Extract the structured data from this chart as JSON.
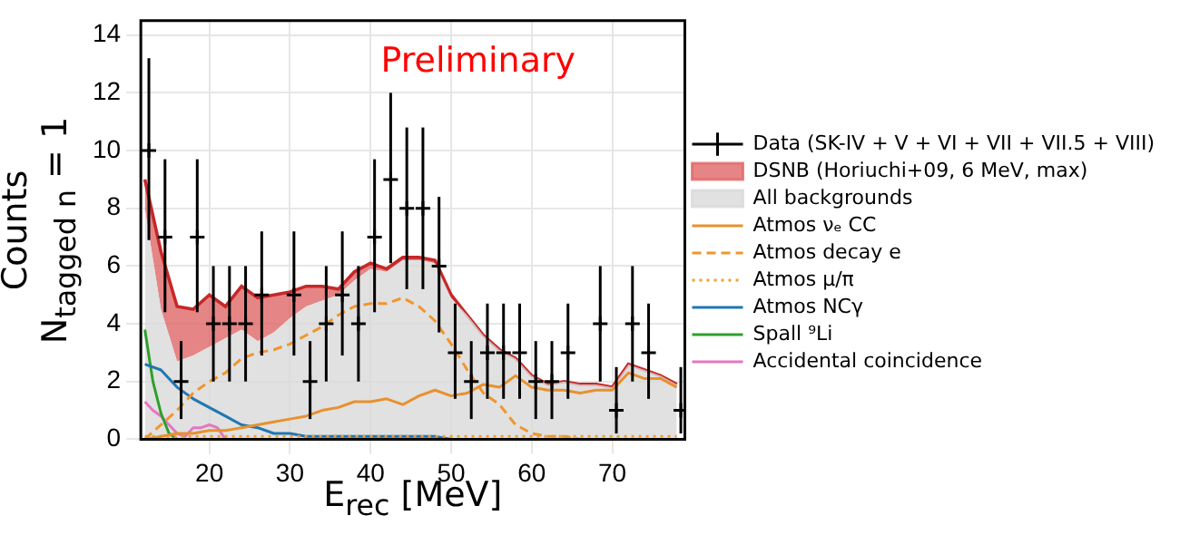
{
  "chart_data": {
    "type": "line",
    "xlabel": "E$_{rec}$ [MeV]",
    "ylabel": "Counts\nN$_{tagged n}$ = 1",
    "annotations": [
      "Preliminary"
    ],
    "xlim": [
      11.5,
      79
    ],
    "xticks": [
      20,
      30,
      40,
      50,
      60,
      70
    ],
    "ylim": [
      0,
      14.5
    ],
    "yticks": [
      0,
      2,
      4,
      6,
      8,
      10,
      12,
      14
    ],
    "grid": true,
    "legend": "right",
    "stacked": true,
    "x": [
      12,
      14,
      16,
      18,
      20,
      22,
      24,
      26,
      28,
      30,
      32,
      34,
      36,
      38,
      40,
      42,
      44,
      46,
      48,
      50,
      52,
      54,
      56,
      58,
      60,
      62,
      64,
      66,
      68,
      70,
      72,
      74,
      76,
      78
    ],
    "series": [
      {
        "name": "Data (SK-IV + V + VI + VII + VII.5 + VIII)",
        "type": "scatter",
        "marker": "cross",
        "color": "#000000",
        "x": [
          12.5,
          14.5,
          16.5,
          18.5,
          20.5,
          22.5,
          24.5,
          26.5,
          28.5,
          30.5,
          32.5,
          34.5,
          36.5,
          38.5,
          40.5,
          42.5,
          44.5,
          46.5,
          48.5,
          50.5,
          52.5,
          54.5,
          56.5,
          58.5,
          60.5,
          62.5,
          64.5,
          66.5,
          68.5,
          70.5,
          72.5,
          74.5,
          76.5,
          78.5
        ],
        "values": [
          10,
          7,
          2,
          7,
          4,
          4,
          4,
          5,
          null,
          5,
          2,
          4,
          5,
          4,
          7,
          9,
          8,
          8,
          6,
          3,
          2,
          3,
          3,
          3,
          2,
          2,
          3,
          null,
          4,
          1,
          4,
          3,
          null,
          1
        ],
        "errors": [
          [
            6.9,
            13.2
          ],
          [
            4.4,
            9.7
          ],
          [
            0.7,
            3.4
          ],
          [
            4.4,
            9.7
          ],
          [
            2.0,
            6.0
          ],
          [
            2.0,
            6.0
          ],
          [
            2.0,
            6.0
          ],
          [
            2.9,
            7.2
          ],
          null,
          [
            2.9,
            7.2
          ],
          [
            0.7,
            3.4
          ],
          [
            2.0,
            6.0
          ],
          [
            2.9,
            7.2
          ],
          [
            2.0,
            6.0
          ],
          [
            4.4,
            9.7
          ],
          [
            6.1,
            12.0
          ],
          [
            5.2,
            10.8
          ],
          [
            5.2,
            10.8
          ],
          [
            3.7,
            8.4
          ],
          [
            1.4,
            4.7
          ],
          [
            0.7,
            3.4
          ],
          [
            1.4,
            4.7
          ],
          [
            1.4,
            4.7
          ],
          [
            1.4,
            4.7
          ],
          [
            0.7,
            3.4
          ],
          [
            0.7,
            3.4
          ],
          [
            1.4,
            4.7
          ],
          null,
          [
            2.0,
            6.0
          ],
          [
            0.2,
            2.5
          ],
          [
            2.0,
            6.0
          ],
          [
            1.4,
            4.7
          ],
          null,
          [
            0.2,
            2.5
          ]
        ]
      },
      {
        "name": "DSNB (Horiuchi+09, 6 MeV, max)",
        "type": "area",
        "color": "#e06666",
        "values": [
          1.0,
          2.0,
          1.9,
          1.6,
          1.8,
          1.1,
          1.5,
          1.5,
          1.3,
          0.9,
          0.7,
          0.5,
          0.2,
          0.3,
          0.2,
          0.1,
          0.1,
          0.1,
          0.1,
          0.1,
          0,
          0,
          0,
          0,
          0,
          0,
          0,
          0,
          0,
          0,
          0,
          0,
          0,
          0
        ]
      },
      {
        "name": "All backgrounds",
        "type": "area",
        "color": "#d9d9d9",
        "values": [
          8.0,
          4.5,
          2.7,
          2.9,
          3.2,
          3.5,
          3.8,
          3.4,
          3.7,
          4.2,
          4.6,
          4.8,
          5.0,
          5.5,
          5.9,
          5.8,
          6.2,
          6.2,
          6.1,
          4.9,
          4.3,
          3.6,
          3.1,
          2.8,
          2.2,
          1.9,
          2.0,
          1.9,
          1.9,
          1.8,
          2.6,
          2.4,
          2.2,
          1.9
        ]
      },
      {
        "name": "Atmos νₑ CC",
        "type": "line",
        "line_style": "solid",
        "marker": "none",
        "color": "#e8912d",
        "values": [
          0.0,
          0.1,
          0.2,
          0.2,
          0.3,
          0.3,
          0.4,
          0.5,
          0.6,
          0.7,
          0.8,
          1.0,
          1.1,
          1.3,
          1.3,
          1.4,
          1.2,
          1.5,
          1.7,
          1.5,
          1.6,
          1.9,
          1.8,
          2.2,
          1.8,
          1.7,
          1.7,
          1.6,
          1.7,
          1.7,
          2.3,
          2.1,
          2.1,
          1.8
        ]
      },
      {
        "name": "Atmos decay e",
        "type": "line",
        "line_style": "dashed",
        "marker": "none",
        "color": "#f0962e",
        "values": [
          0.0,
          0.5,
          1.0,
          1.6,
          2.0,
          2.3,
          2.8,
          3.0,
          3.1,
          3.3,
          3.6,
          3.9,
          4.3,
          4.6,
          4.7,
          4.7,
          4.9,
          4.6,
          4.1,
          3.3,
          2.4,
          1.6,
          1.2,
          0.5,
          0.2,
          0.1,
          0.1,
          0,
          0,
          0,
          0,
          0,
          0,
          0
        ]
      },
      {
        "name": "Atmos μ/π",
        "type": "line",
        "line_style": "dotted",
        "marker": "none",
        "color": "#f0a030",
        "values": [
          0.1,
          0.1,
          0.1,
          0.1,
          0.1,
          0.1,
          0.1,
          0.1,
          0.1,
          0.1,
          0.1,
          0.1,
          0.1,
          0.1,
          0.1,
          0.1,
          0.1,
          0.1,
          0.1,
          0.1,
          0.1,
          0.1,
          0.1,
          0.1,
          0.1,
          0.1,
          0.1,
          0.1,
          0.1,
          0.1,
          0.1,
          0.1,
          0.1,
          0.1
        ]
      },
      {
        "name": "Atmos NCγ",
        "type": "line",
        "line_style": "solid",
        "marker": "none",
        "color": "#1f77b4",
        "values": [
          2.6,
          2.4,
          1.8,
          1.4,
          1.1,
          0.8,
          0.5,
          0.4,
          0.2,
          0.2,
          0.1,
          0.1,
          0.1,
          0.1,
          0.1,
          0.1,
          0.1,
          0.1,
          0.1,
          0,
          0,
          null,
          null,
          null,
          null,
          null,
          null,
          null,
          null,
          null,
          null,
          null,
          null,
          null
        ]
      },
      {
        "name": "Spall ⁹Li",
        "type": "line",
        "line_style": "solid",
        "marker": "none",
        "color": "#2ca02c",
        "x": [
          12,
          13,
          14,
          15,
          16
        ],
        "values": [
          3.8,
          2.0,
          0.9,
          0.2,
          0
        ]
      },
      {
        "name": "Accidental coincidence",
        "type": "line",
        "line_style": "solid",
        "marker": "none",
        "color": "#e377c2",
        "x": [
          12,
          13,
          14,
          15,
          16,
          17,
          18,
          19,
          20,
          21,
          22
        ],
        "values": [
          1.3,
          1.0,
          0.8,
          0.5,
          0.2,
          0.1,
          0.4,
          0.4,
          0.5,
          0.4,
          0
        ]
      }
    ]
  }
}
